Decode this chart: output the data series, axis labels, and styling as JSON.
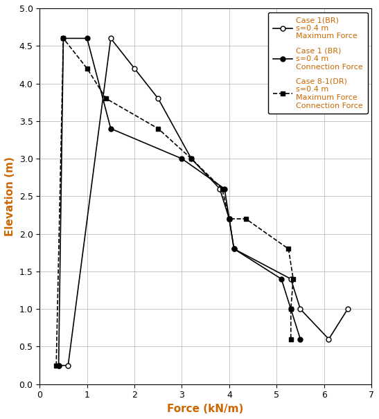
{
  "title": "",
  "xlabel": "Force (kN/m)",
  "ylabel": "Elevation (m)",
  "xlim": [
    0,
    7
  ],
  "ylim": [
    0,
    5
  ],
  "xticks": [
    0,
    1,
    2,
    3,
    4,
    5,
    6,
    7
  ],
  "yticks": [
    0,
    0.5,
    1.0,
    1.5,
    2.0,
    2.5,
    3.0,
    3.5,
    4.0,
    4.5,
    5.0
  ],
  "case1_max_force": {
    "force": [
      0.4,
      0.6,
      1.5,
      2.0,
      2.5,
      3.2,
      3.8,
      4.0,
      4.1,
      5.3,
      5.5,
      6.1,
      6.5
    ],
    "elev": [
      0.25,
      0.25,
      4.6,
      4.2,
      3.8,
      3.0,
      2.6,
      2.2,
      1.8,
      1.4,
      1.0,
      0.6,
      1.0
    ],
    "color": "#000000",
    "linestyle": "-",
    "marker": "o",
    "markerfacecolor": "white",
    "markersize": 5,
    "linewidth": 1.2
  },
  "case1_conn_force": {
    "force": [
      0.4,
      0.5,
      1.0,
      1.5,
      3.0,
      3.9,
      4.0,
      4.1,
      5.1,
      5.3,
      5.5
    ],
    "elev": [
      0.25,
      4.6,
      4.6,
      3.4,
      3.0,
      2.6,
      2.2,
      1.8,
      1.4,
      1.0,
      0.6
    ],
    "color": "#000000",
    "linestyle": "-",
    "marker": "o",
    "markerfacecolor": "#000000",
    "markersize": 5,
    "linewidth": 1.2
  },
  "case81_force": {
    "force": [
      0.35,
      0.5,
      1.0,
      1.4,
      2.5,
      3.2,
      3.85,
      4.0,
      4.35,
      5.25,
      5.35,
      5.3,
      5.3
    ],
    "elev": [
      0.25,
      4.6,
      4.2,
      3.8,
      3.4,
      3.0,
      2.6,
      2.2,
      2.2,
      1.8,
      1.4,
      1.0,
      0.6
    ],
    "color": "#000000",
    "linestyle": "--",
    "marker": "s",
    "markerfacecolor": "#000000",
    "markersize": 5,
    "linewidth": 1.2
  },
  "legend_label1": "Case 1(BR)\ns=0.4 m\nMaximum Force",
  "legend_label2": "Case 1 (BR)\ns=0.4 m\nConnection Force",
  "legend_label3": "Case 8-1(DR)\ns=0.4 m\nMaximum Force\nConnection Force",
  "axis_label_color": "#cc6600",
  "tick_label_color": "#000000",
  "grid_color": "#bbbbbb",
  "background_color": "#ffffff",
  "figsize": [
    5.47,
    6.05
  ],
  "dpi": 100
}
